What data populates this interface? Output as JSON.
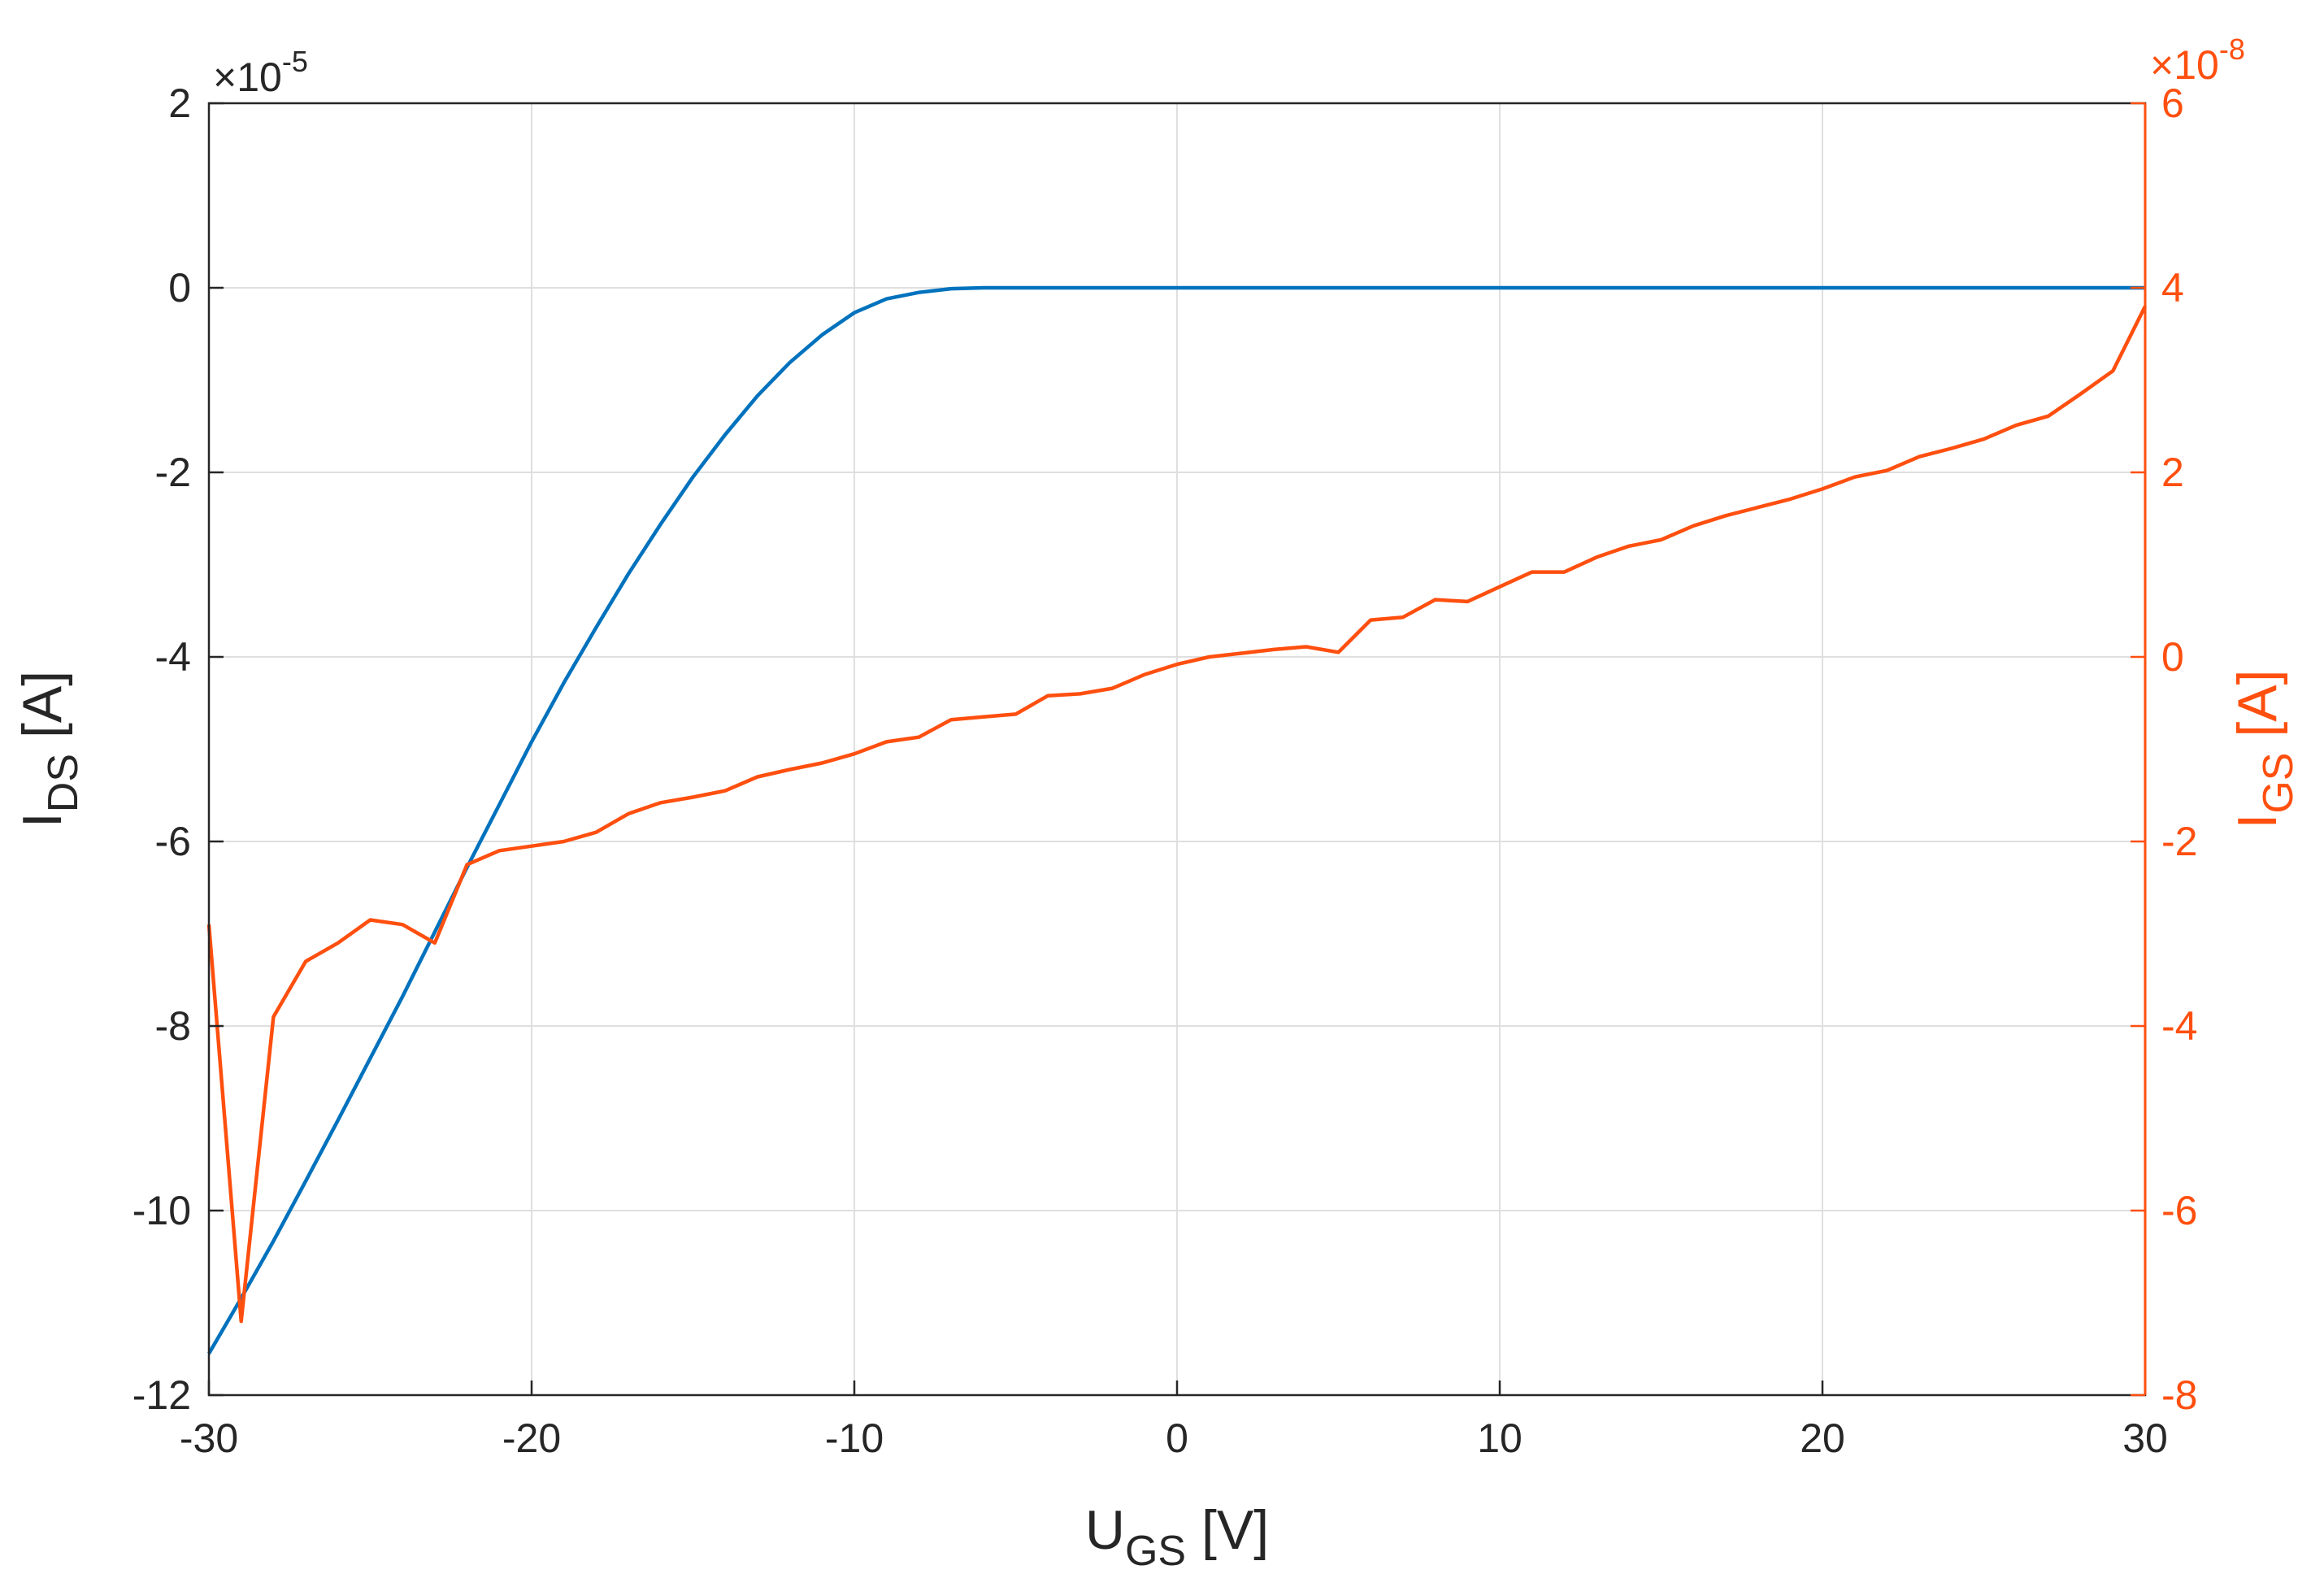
{
  "chart_data": {
    "type": "line",
    "colors": {
      "left_axis": "#262626",
      "right_axis": "#FF4F0F",
      "series_ids": "#0072BD",
      "series_igs": "#FF4F0F",
      "grid": "#DFDFDF"
    },
    "grid": true,
    "x_axis": {
      "label_main": "U",
      "label_sub": "GS",
      "label_unit": " [V]",
      "lim": [
        -30,
        30
      ],
      "ticks": [
        -30,
        -20,
        -10,
        0,
        10,
        20,
        30
      ],
      "tick_labels": [
        "-30",
        "-20",
        "-10",
        "0",
        "10",
        "20",
        "30"
      ]
    },
    "y_left": {
      "label_main": "I",
      "label_sub": "DS",
      "label_unit": " [A]",
      "exponent_base": "×10",
      "exponent_power": "-5",
      "lim": [
        -12,
        2
      ],
      "ticks": [
        -12,
        -10,
        -8,
        -6,
        -4,
        -2,
        0,
        2
      ],
      "tick_labels": [
        "-12",
        "-10",
        "-8",
        "-6",
        "-4",
        "-2",
        "0",
        "2"
      ]
    },
    "y_right": {
      "label_main": "I",
      "label_sub": "GS",
      "label_unit": " [A]",
      "exponent_base": "×10",
      "exponent_power": "-8",
      "lim": [
        -8,
        6
      ],
      "ticks": [
        -8,
        -6,
        -4,
        -2,
        0,
        2,
        4,
        6
      ],
      "tick_labels": [
        "-8",
        "-6",
        "-4",
        "-2",
        "0",
        "2",
        "4",
        "6"
      ]
    },
    "series": [
      {
        "axis": "left",
        "x": [
          -30,
          -29,
          -28,
          -27,
          -26,
          -25,
          -24,
          -23,
          -22,
          -21,
          -20,
          -19,
          -18,
          -17,
          -16,
          -15,
          -14,
          -13,
          -12,
          -11,
          -10,
          -9,
          -8,
          -7,
          -6,
          -5,
          -4,
          0,
          10,
          20,
          30
        ],
        "y": [
          -11.55,
          -10.95,
          -10.33,
          -9.68,
          -9.02,
          -8.35,
          -7.68,
          -6.98,
          -6.28,
          -5.6,
          -4.92,
          -4.28,
          -3.68,
          -3.1,
          -2.56,
          -2.05,
          -1.59,
          -1.17,
          -0.81,
          -0.51,
          -0.27,
          -0.12,
          -0.05,
          -0.01,
          0.0,
          0.0,
          0.0,
          0.0,
          0.0,
          0.0,
          0.0
        ]
      },
      {
        "axis": "right",
        "x": [
          -30,
          -29,
          -28,
          -27,
          -26,
          -25,
          -24,
          -23,
          -22,
          -21,
          -20,
          -19,
          -18,
          -17,
          -16,
          -15,
          -14,
          -13,
          -12,
          -11,
          -10,
          -9,
          -8,
          -7,
          -6,
          -5,
          -4,
          -3,
          -2,
          -1,
          0,
          1,
          2,
          3,
          4,
          5,
          6,
          7,
          8,
          9,
          10,
          11,
          12,
          13,
          14,
          15,
          16,
          17,
          18,
          19,
          20,
          21,
          22,
          23,
          24,
          25,
          26,
          27,
          28,
          29,
          30
        ],
        "y": [
          -2.9,
          -7.2,
          -3.9,
          -3.3,
          -3.1,
          -2.85,
          -2.9,
          -3.1,
          -2.25,
          -2.1,
          -2.05,
          -2.0,
          -1.9,
          -1.7,
          -1.58,
          -1.52,
          -1.45,
          -1.3,
          -1.22,
          -1.15,
          -1.05,
          -0.92,
          -0.87,
          -0.68,
          -0.65,
          -0.62,
          -0.42,
          -0.4,
          -0.34,
          -0.19,
          -0.08,
          0.0,
          0.04,
          0.08,
          0.11,
          0.05,
          0.4,
          0.43,
          0.62,
          0.6,
          0.76,
          0.92,
          0.92,
          1.08,
          1.2,
          1.27,
          1.42,
          1.53,
          1.62,
          1.71,
          1.82,
          1.95,
          2.02,
          2.17,
          2.26,
          2.36,
          2.51,
          2.61,
          2.85,
          3.1,
          3.8
        ]
      }
    ]
  }
}
